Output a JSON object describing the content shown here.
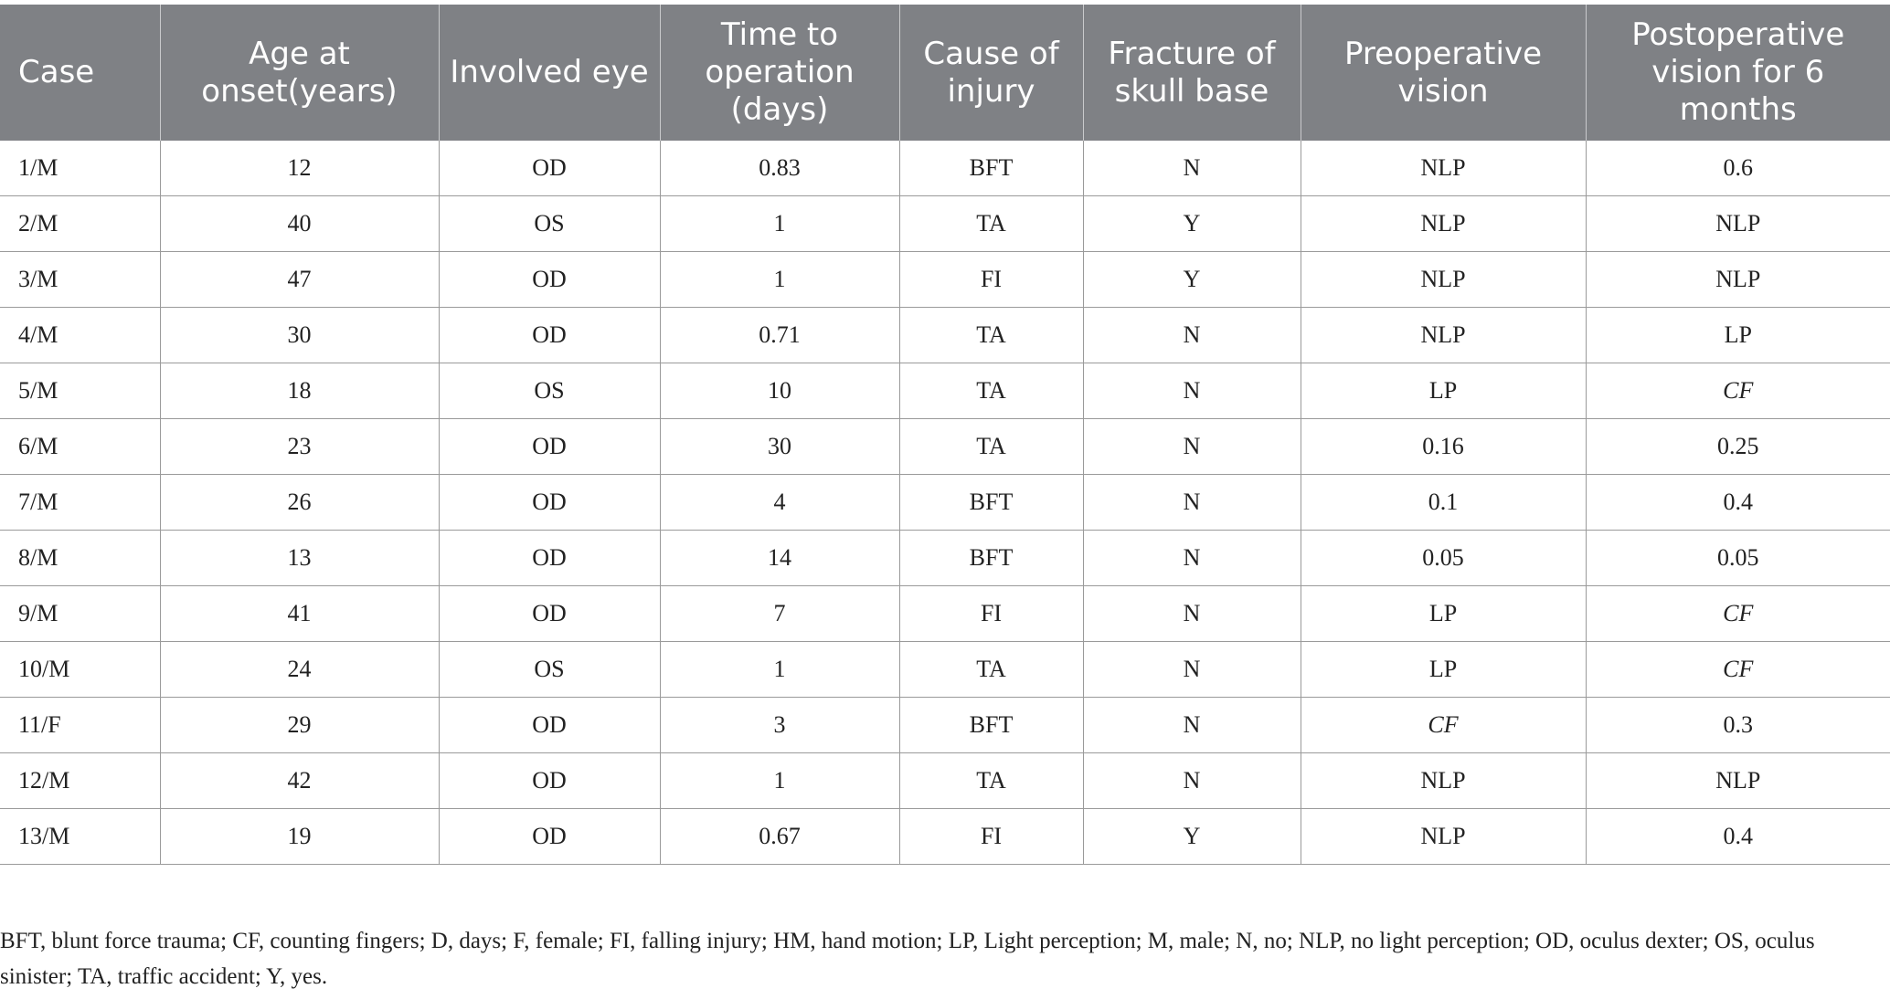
{
  "table": {
    "headers": [
      "Case",
      "Age at onset(years)",
      "Involved eye",
      "Time to operation (days)",
      "Cause of injury",
      "Fracture of skull base",
      "Preoperative vision",
      "Postoperative vision for 6 months"
    ],
    "rows": [
      [
        "1/M",
        "12",
        "OD",
        "0.83",
        "BFT",
        "N",
        "NLP",
        "0.6"
      ],
      [
        "2/M",
        "40",
        "OS",
        "1",
        "TA",
        "Y",
        "NLP",
        "NLP"
      ],
      [
        "3/M",
        "47",
        "OD",
        "1",
        "FI",
        "Y",
        "NLP",
        "NLP"
      ],
      [
        "4/M",
        "30",
        "OD",
        "0.71",
        "TA",
        "N",
        "NLP",
        "LP"
      ],
      [
        "5/M",
        "18",
        "OS",
        "10",
        "TA",
        "N",
        "LP",
        "CF"
      ],
      [
        "6/M",
        "23",
        "OD",
        "30",
        "TA",
        "N",
        "0.16",
        "0.25"
      ],
      [
        "7/M",
        "26",
        "OD",
        "4",
        "BFT",
        "N",
        "0.1",
        "0.4"
      ],
      [
        "8/M",
        "13",
        "OD",
        "14",
        "BFT",
        "N",
        "0.05",
        "0.05"
      ],
      [
        "9/M",
        "41",
        "OD",
        "7",
        "FI",
        "N",
        "LP",
        "CF"
      ],
      [
        "10/M",
        "24",
        "OS",
        "1",
        "TA",
        "N",
        "LP",
        "CF"
      ],
      [
        "11/F",
        "29",
        "OD",
        "3",
        "BFT",
        "N",
        "CF",
        "0.3"
      ],
      [
        "12/M",
        "42",
        "OD",
        "1",
        "TA",
        "N",
        "NLP",
        "NLP"
      ],
      [
        "13/M",
        "19",
        "OD",
        "0.67",
        "FI",
        "Y",
        "NLP",
        "0.4"
      ]
    ]
  },
  "footnote": "BFT, blunt force trauma; CF, counting fingers; D, days; F, female; FI, falling injury; HM, hand motion; LP, Light perception; M, male; N, no; NLP, no light perception; OD, oculus dexter; OS, oculus sinister; TA, traffic accident; Y, yes."
}
